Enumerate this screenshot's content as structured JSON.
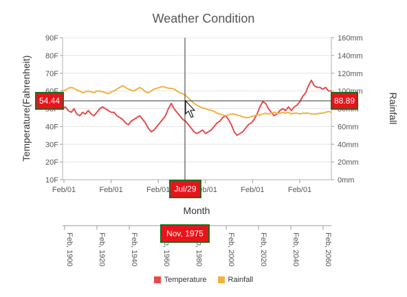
{
  "chart_data": {
    "title": "Weather Condition",
    "type": "line",
    "x_axis": {
      "label": "Month",
      "tick_labels": [
        "Feb/01",
        "Feb/01",
        "Feb/01",
        "Feb/01",
        "Feb/01",
        "Feb/01"
      ]
    },
    "y_axis_left": {
      "label": "Temperature(Fahrenheit)",
      "min": 10,
      "max": 90,
      "interval": 10,
      "tick_labels": [
        "10F",
        "20F",
        "30F",
        "40F",
        "50F",
        "60F",
        "70F",
        "80F",
        "90F"
      ]
    },
    "y_axis_right": {
      "label": "Rainfall",
      "min": 0,
      "max": 160,
      "interval": 20,
      "tick_labels": [
        "0mm",
        "20mm",
        "40mm",
        "60mm",
        "80mm",
        "100mm",
        "120mm",
        "140mm",
        "160mm"
      ]
    },
    "series": [
      {
        "name": "Temperature",
        "axis": "left",
        "color": "#e64a4a",
        "values": [
          50,
          51,
          49,
          48,
          50,
          47,
          46,
          48,
          47,
          49,
          47,
          46,
          48,
          50,
          51,
          50,
          49,
          48,
          48,
          46,
          45,
          44,
          42,
          41,
          43,
          44,
          45,
          46,
          44,
          42,
          39,
          37,
          38,
          40,
          42,
          44,
          46,
          50,
          53,
          50,
          48,
          46,
          44,
          43,
          41,
          39,
          37,
          36,
          37,
          38,
          36,
          37,
          38,
          40,
          42,
          43,
          45,
          46,
          44,
          41,
          37,
          35,
          36,
          37,
          39,
          41,
          42,
          44,
          47,
          51,
          54,
          53,
          50,
          48,
          46,
          47,
          49,
          50,
          49,
          51,
          49,
          51,
          52,
          54,
          57,
          59,
          63,
          66,
          63,
          62,
          62,
          61,
          62,
          60,
          60
        ]
      },
      {
        "name": "Rainfall",
        "axis": "right",
        "color": "#f2b13d",
        "values": [
          100,
          101,
          103,
          104,
          103,
          101,
          100,
          98,
          99,
          100,
          99,
          98,
          100,
          100,
          99,
          98,
          97,
          99,
          100,
          102,
          104,
          106,
          104,
          102,
          101,
          100,
          102,
          104,
          102,
          99,
          98,
          100,
          102,
          103,
          104,
          105,
          104,
          103,
          103,
          102,
          100,
          98,
          97,
          95,
          92,
          89,
          86,
          84,
          82,
          81,
          80,
          79,
          78,
          77,
          75,
          74,
          73,
          72,
          73,
          74,
          74,
          73,
          72,
          71,
          70,
          70,
          71,
          72,
          73,
          73,
          74,
          75,
          74,
          75,
          76,
          75,
          75,
          76,
          75,
          76,
          74,
          75,
          75,
          74,
          75,
          75,
          75,
          74,
          74,
          74,
          75,
          75,
          76,
          77,
          76
        ]
      }
    ],
    "crosshair": {
      "x_label": "Jul/29",
      "left_value_label": "54.44",
      "right_value_label": "88.89",
      "secondary_axis_label": "Nov, 1975"
    },
    "secondary_x_axis": {
      "tick_labels": [
        "Feb, 1900",
        "Feb, 1920",
        "Feb, 1940",
        "Feb, 1960",
        "Feb, 1980",
        "Feb, 2000",
        "Feb, 2020",
        "Feb, 2040",
        "Feb, 2060"
      ]
    },
    "legend": {
      "position": "bottom",
      "items": [
        {
          "label": "Temperature",
          "color": "#e64a4a"
        },
        {
          "label": "Rainfall",
          "color": "#f2b13d"
        }
      ]
    },
    "grid": true
  }
}
